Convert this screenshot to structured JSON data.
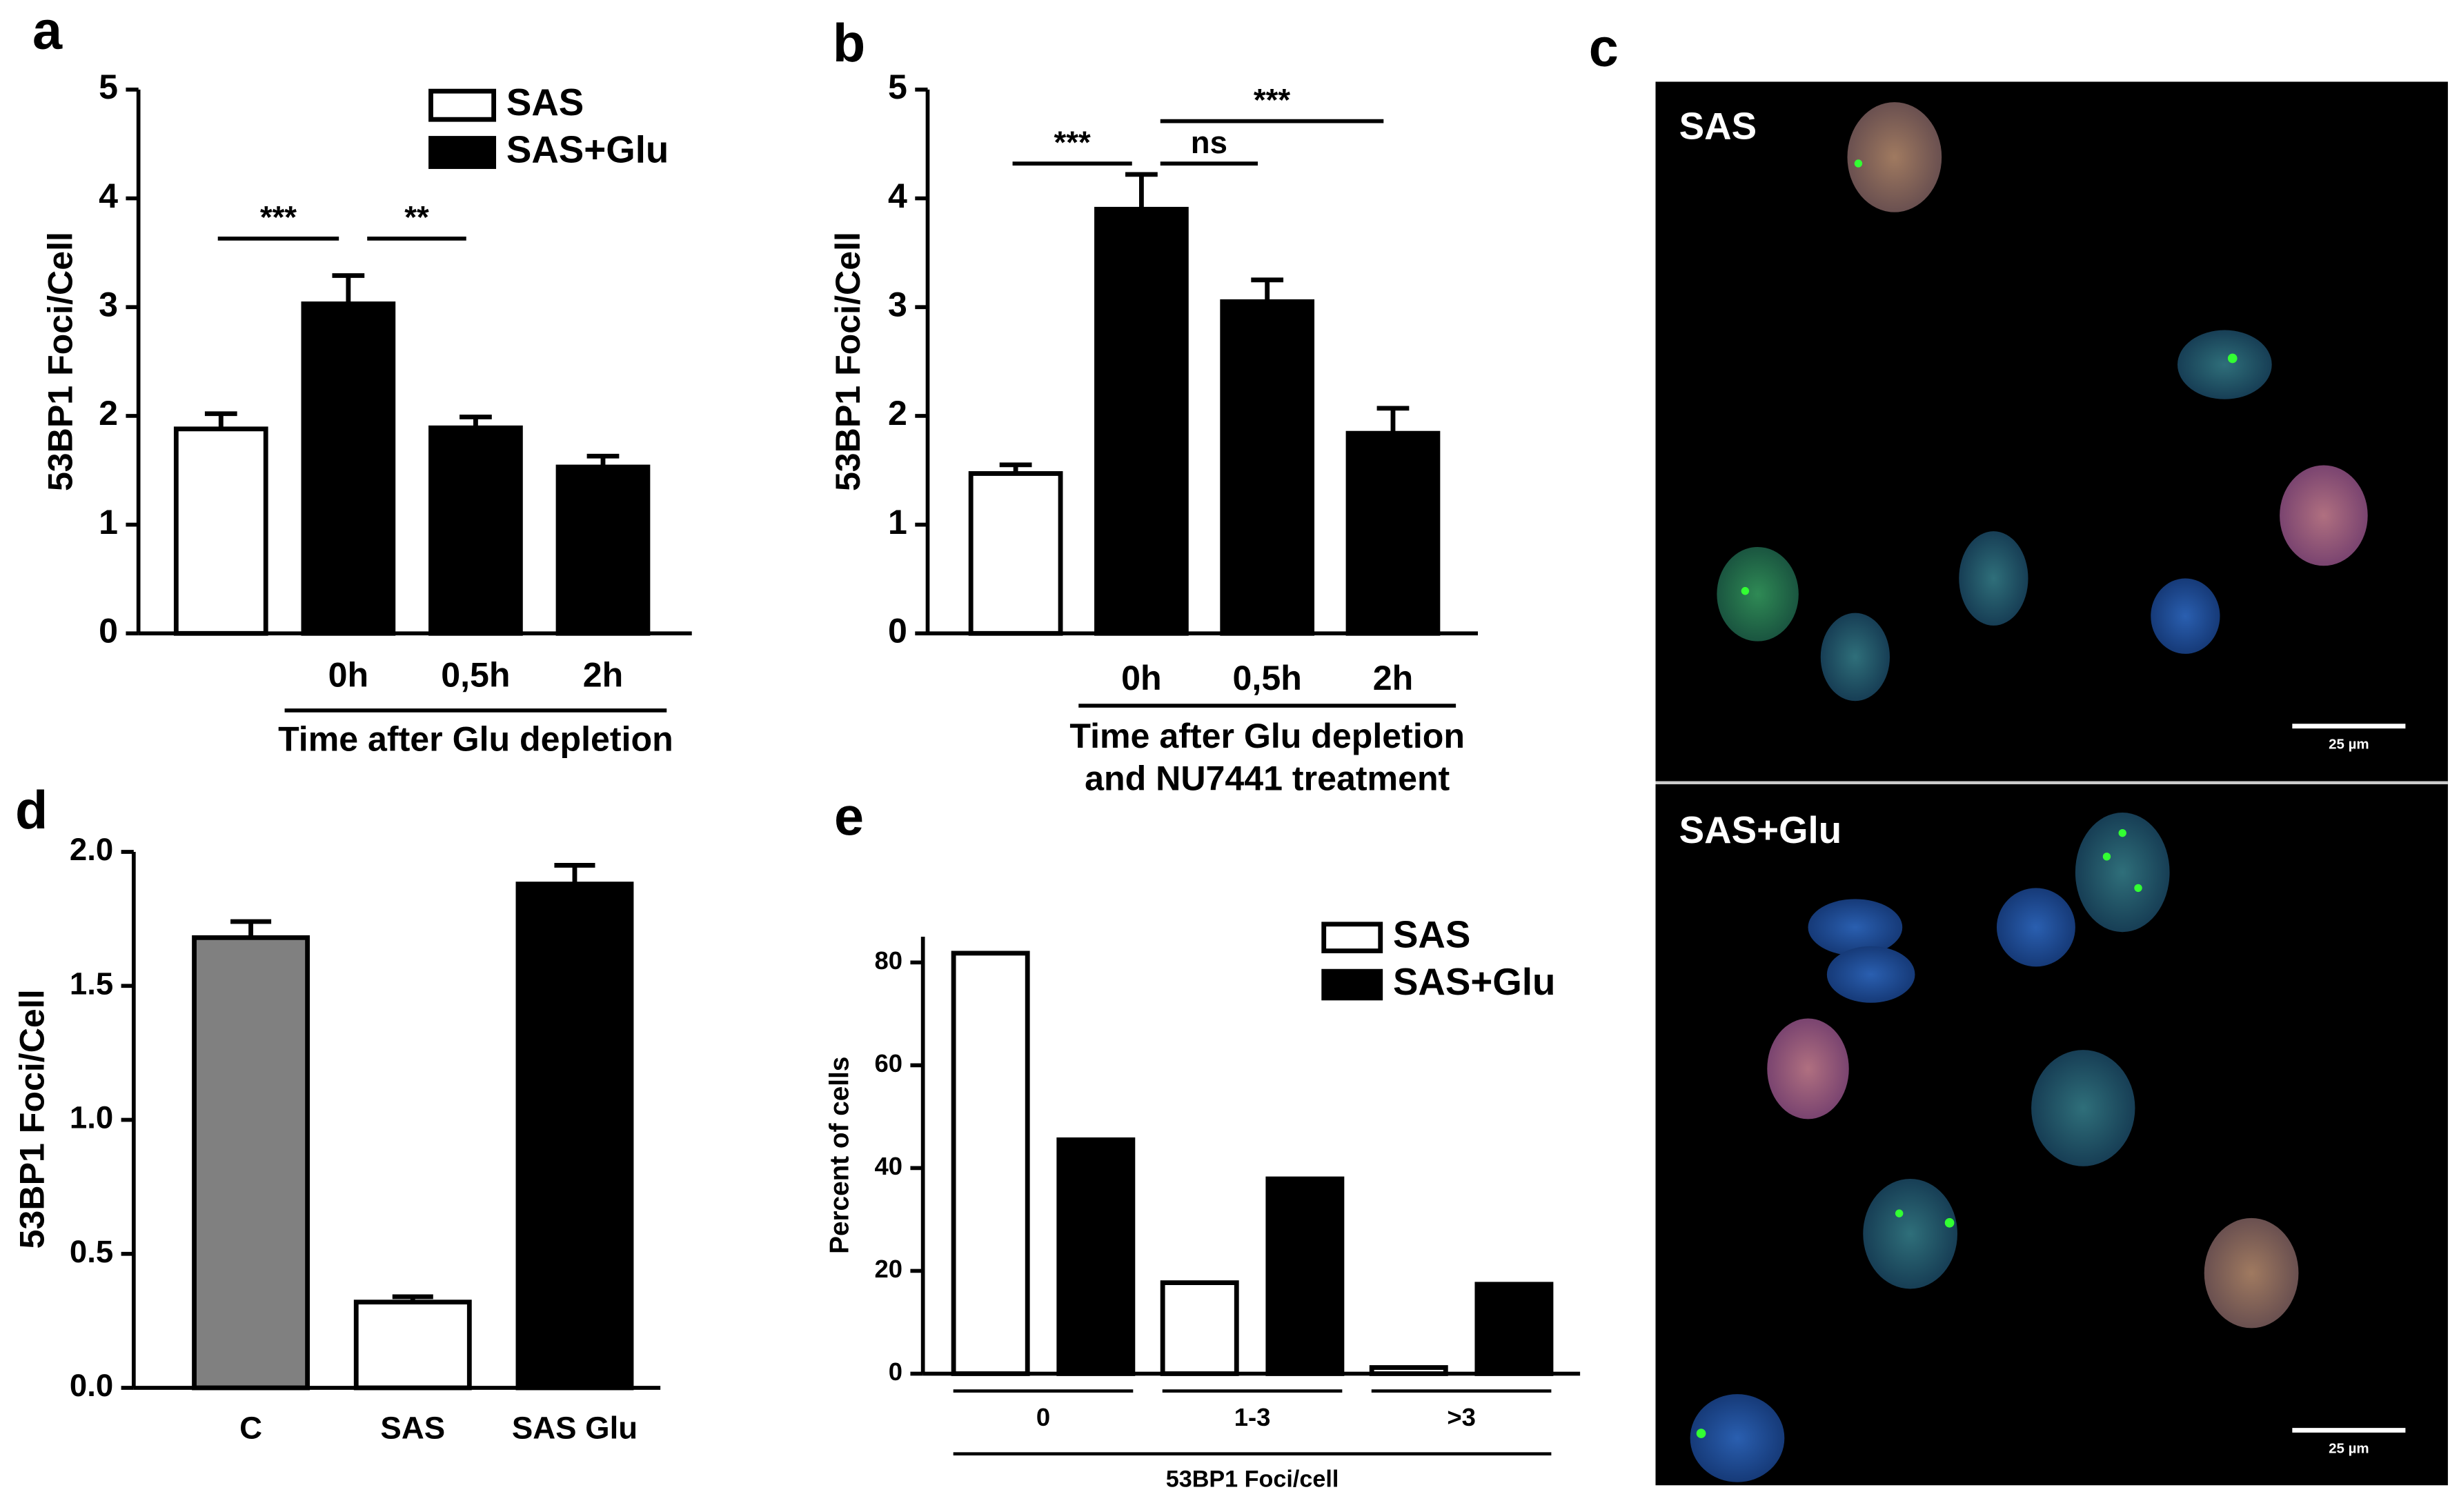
{
  "chart_data": [
    {
      "type": "bar",
      "panel": "a",
      "ylabel": "53BP1 Foci/Cell",
      "xlabel": "Time after Glu depletion",
      "categories": [
        null,
        "0h",
        "0,5h",
        "2h"
      ],
      "series": [
        {
          "name": "SAS",
          "color": "#ffffff",
          "values": [
            1.88,
            null,
            null,
            null
          ],
          "errors": [
            0.14,
            null,
            null,
            null
          ]
        },
        {
          "name": "SAS+Glu",
          "color": "#000000",
          "values": [
            null,
            3.03,
            1.89,
            1.53
          ],
          "errors": [
            null,
            0.26,
            0.1,
            0.1
          ]
        }
      ],
      "brackets": [
        {
          "label": "***",
          "from": 0,
          "to": 1,
          "y": 3.63
        },
        {
          "label": "**",
          "from": 1,
          "to": 2,
          "y": 3.63
        }
      ],
      "ylim": [
        0,
        5
      ],
      "yticks": [
        0,
        1,
        2,
        3,
        4,
        5
      ]
    },
    {
      "type": "bar",
      "panel": "b",
      "ylabel": "53BP1 Foci/Cell",
      "xlabel": [
        "Time after Glu depletion",
        "and NU7441 treatment"
      ],
      "categories": [
        null,
        "0h",
        "0,5h",
        "2h"
      ],
      "series": [
        {
          "color": "#ffffff",
          "values": [
            1.47,
            null,
            null,
            null
          ],
          "errors": [
            0.08,
            null,
            null,
            null
          ]
        },
        {
          "color": "#000000",
          "values": [
            null,
            3.9,
            3.05,
            1.84
          ],
          "errors": [
            null,
            0.32,
            0.2,
            0.23
          ]
        }
      ],
      "brackets": [
        {
          "label": "***",
          "from": 0,
          "to": 1,
          "y": 4.32
        },
        {
          "label": "ns",
          "from": 1,
          "to": 2,
          "y": 4.32
        },
        {
          "label": "***",
          "from": 1,
          "to": 3,
          "y": 4.71
        }
      ],
      "ylim": [
        0,
        5
      ],
      "yticks": [
        0,
        1,
        2,
        3,
        4,
        5
      ]
    },
    {
      "type": "bar",
      "panel": "d",
      "ylabel": "53BP1 Foci/Cell",
      "categories": [
        "C",
        "SAS",
        "SAS Glu"
      ],
      "values": [
        1.68,
        0.32,
        1.88
      ],
      "errors": [
        0.06,
        0.02,
        0.07
      ],
      "colors": [
        "#808080",
        "#ffffff",
        "#000000"
      ],
      "ylim": [
        0,
        2
      ],
      "yticks": [
        {
          "value": 0,
          "label": "0.0"
        },
        {
          "value": 0.5,
          "label": "0.5"
        },
        {
          "value": 1,
          "label": "1.0"
        },
        {
          "value": 1.5,
          "label": "1.5"
        },
        {
          "value": 2,
          "label": "2.0"
        }
      ]
    },
    {
      "type": "bar",
      "panel": "e",
      "ylabel": "Percent of cells",
      "xlabel": "53BP1 Foci/cell",
      "categories": [
        "0",
        "1-3",
        ">3"
      ],
      "series": [
        {
          "name": "SAS",
          "color": "#ffffff",
          "values": [
            81.8,
            17.7,
            1.2
          ]
        },
        {
          "name": "SAS+Glu",
          "color": "#000000",
          "values": [
            45.5,
            37.9,
            17.4
          ]
        }
      ],
      "ylim": [
        0,
        85
      ],
      "yticks": [
        0,
        20,
        40,
        60,
        80
      ]
    }
  ],
  "micrograph": {
    "panel": "c",
    "images": [
      {
        "label": "SAS",
        "scale_bar": "25 µm"
      },
      {
        "label": "SAS+Glu",
        "scale_bar": "25 µm"
      }
    ]
  }
}
